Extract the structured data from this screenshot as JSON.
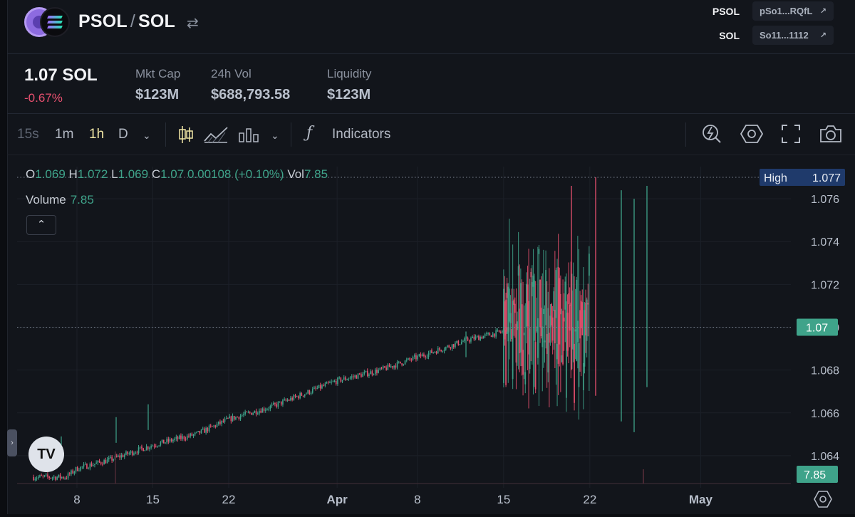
{
  "pair": {
    "base": "PSOL",
    "separator": "/",
    "quote": "SOL",
    "swap_icon": "swap-arrows-icon"
  },
  "addresses": [
    {
      "label": "PSOL",
      "short": "pSo1...RQfL"
    },
    {
      "label": "SOL",
      "short": "So11...1112"
    }
  ],
  "stats": {
    "price": "1.07 SOL",
    "change": "-0.67%",
    "mkt_cap_label": "Mkt Cap",
    "mkt_cap_value": "$123M",
    "vol_label": "24h Vol",
    "vol_value": "$688,793.58",
    "liq_label": "Liquidity",
    "liq_value": "$123M"
  },
  "toolbar": {
    "intervals": [
      "15s",
      "1m",
      "1h",
      "D"
    ],
    "active_interval": "1h",
    "indicators_label": "Indicators",
    "icons": [
      "candles-icon",
      "area-chart-icon",
      "bars-icon",
      "fx-icon",
      "quick-replace-icon",
      "settings-icon",
      "fullscreen-icon",
      "camera-icon"
    ]
  },
  "legend": {
    "o_label": "O",
    "o": "1.069",
    "h_label": "H",
    "h": "1.072",
    "l_label": "L",
    "l": "1.069",
    "c_label": "C",
    "c": "1.07",
    "change": "0.00108 (+0.10%)",
    "vol_label": "Vol",
    "vol": "7.85",
    "volume_label": "Volume",
    "volume": "7.85",
    "collapse": "⌃"
  },
  "colors": {
    "up": "#3fa38a",
    "down": "#e8506f",
    "high_badge": "#1f3a6b",
    "last_badge": "#3fa38a"
  },
  "chart_data": {
    "type": "candlestick",
    "x_ticks": [
      "8",
      "15",
      "22",
      "Apr",
      "8",
      "15",
      "22",
      "May"
    ],
    "y_ticks": [
      1.064,
      1.066,
      1.068,
      1.07,
      1.072,
      1.074,
      1.076
    ],
    "ylim": [
      1.0625,
      1.0775
    ],
    "high_label": "High",
    "high_value": "1.077",
    "last_price": "1.07",
    "last_volume": "7.85",
    "trend": [
      {
        "date": "Mar 4",
        "price": 1.063
      },
      {
        "date": "Mar 7",
        "price": 1.063
      },
      {
        "date": "Mar 8",
        "price": 1.0634
      },
      {
        "date": "Mar 11",
        "price": 1.0638
      },
      {
        "date": "Mar 15",
        "price": 1.0645
      },
      {
        "date": "Mar 19",
        "price": 1.065
      },
      {
        "date": "Mar 22",
        "price": 1.0657
      },
      {
        "date": "Mar 26",
        "price": 1.0663
      },
      {
        "date": "Mar 29",
        "price": 1.0669
      },
      {
        "date": "Apr 1",
        "price": 1.0675
      },
      {
        "date": "Apr 5",
        "price": 1.068
      },
      {
        "date": "Apr 8",
        "price": 1.0686
      },
      {
        "date": "Apr 12",
        "price": 1.0694
      },
      {
        "date": "Apr 15",
        "price": 1.0698
      },
      {
        "date": "Apr 16",
        "price": 1.07
      }
    ],
    "volatile_window": {
      "start": "Apr 15",
      "end": "Apr 22",
      "low": 1.065,
      "high": 1.077
    },
    "grid": true
  }
}
